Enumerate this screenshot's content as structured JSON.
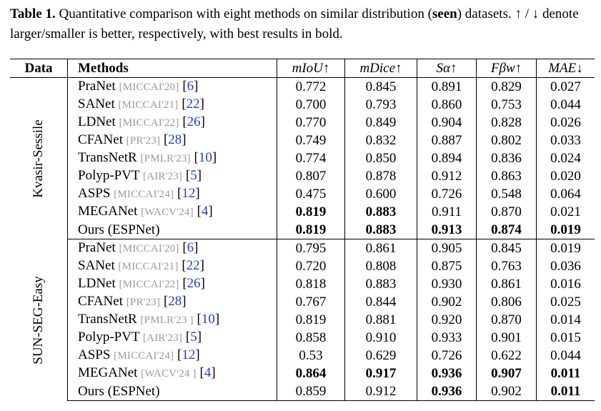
{
  "caption": {
    "label": "Table 1.",
    "text_a": " Quantitative comparison with eight methods on similar distribution (",
    "text_seen": "seen",
    "text_b": ") datasets. ↑ / ↓ denote larger/smaller is better, respectively, with best results in bold."
  },
  "header": {
    "data": "Data",
    "methods": "Methods",
    "miou": "mIoU↑",
    "mdice": "mDice↑",
    "s_alpha": "Sα↑",
    "f_beta": "Fβw↑",
    "mae": "MAE↓"
  },
  "groups": [
    {
      "name": "Kvasir-Sessile",
      "rows": [
        {
          "method": "PraNet",
          "venue": "[MICCAI'20]",
          "cite": "6",
          "v": [
            "0.772",
            "0.845",
            "0.891",
            "0.829",
            "0.027"
          ],
          "bold": [
            false,
            false,
            false,
            false,
            false
          ]
        },
        {
          "method": "SANet",
          "venue": "[MICCAI'21]",
          "cite": "22",
          "v": [
            "0.700",
            "0.793",
            "0.860",
            "0.753",
            "0.044"
          ],
          "bold": [
            false,
            false,
            false,
            false,
            false
          ]
        },
        {
          "method": "LDNet",
          "venue": "[MICCAI'22]",
          "cite": "26",
          "v": [
            "0.770",
            "0.849",
            "0.904",
            "0.828",
            "0.026"
          ],
          "bold": [
            false,
            false,
            false,
            false,
            false
          ]
        },
        {
          "method": "CFANet",
          "venue": "[PR'23]",
          "cite": "28",
          "v": [
            "0.749",
            "0.832",
            "0.887",
            "0.802",
            "0.033"
          ],
          "bold": [
            false,
            false,
            false,
            false,
            false
          ]
        },
        {
          "method": "TransNetR",
          "venue": "[PMLR'23]",
          "cite": "10",
          "v": [
            "0.774",
            "0.850",
            "0.894",
            "0.836",
            "0.024"
          ],
          "bold": [
            false,
            false,
            false,
            false,
            false
          ]
        },
        {
          "method": "Polyp-PVT",
          "venue": "[AIR'23]",
          "cite": "5",
          "v": [
            "0.807",
            "0.878",
            "0.912",
            "0.863",
            "0.020"
          ],
          "bold": [
            false,
            false,
            false,
            false,
            false
          ]
        },
        {
          "method": "ASPS",
          "venue": "[MICCAI'24]",
          "cite": "12",
          "v": [
            "0.475",
            "0.600",
            "0.726",
            "0.548",
            "0.064"
          ],
          "bold": [
            false,
            false,
            false,
            false,
            false
          ]
        },
        {
          "method": "MEGANet",
          "venue": "[WACV'24]",
          "cite": "4",
          "v": [
            "0.819",
            "0.883",
            "0.911",
            "0.870",
            "0.021"
          ],
          "bold": [
            true,
            true,
            false,
            false,
            false
          ]
        },
        {
          "method": "Ours (ESPNet)",
          "venue": "",
          "cite": "",
          "v": [
            "0.819",
            "0.883",
            "0.913",
            "0.874",
            "0.019"
          ],
          "bold": [
            true,
            true,
            true,
            true,
            true
          ]
        }
      ]
    },
    {
      "name": "SUN-SEG-Easy",
      "rows": [
        {
          "method": "PraNet",
          "venue": "[MICCAI'20]",
          "cite": "6",
          "v": [
            "0.795",
            "0.861",
            "0.905",
            "0.845",
            "0.019"
          ],
          "bold": [
            false,
            false,
            false,
            false,
            false
          ]
        },
        {
          "method": "SANet",
          "venue": "[MICCAI'21]",
          "cite": "22",
          "v": [
            "0.720",
            "0.808",
            "0.875",
            "0.763",
            "0.036"
          ],
          "bold": [
            false,
            false,
            false,
            false,
            false
          ]
        },
        {
          "method": "LDNet",
          "venue": "[MICCAI'22]",
          "cite": "26",
          "v": [
            "0.818",
            "0.883",
            "0.930",
            "0.861",
            "0.016"
          ],
          "bold": [
            false,
            false,
            false,
            false,
            false
          ]
        },
        {
          "method": "CFANet",
          "venue": "[PR'23]",
          "cite": "28",
          "v": [
            "0.767",
            "0.844",
            "0.902",
            "0.806",
            "0.025"
          ],
          "bold": [
            false,
            false,
            false,
            false,
            false
          ]
        },
        {
          "method": "TransNetR",
          "venue": "[PMLR'23 ]",
          "cite": "10",
          "v": [
            "0.819",
            "0.881",
            "0.920",
            "0.870",
            "0.014"
          ],
          "bold": [
            false,
            false,
            false,
            false,
            false
          ]
        },
        {
          "method": "Polyp-PVT",
          "venue": "[AIR'23]",
          "cite": "5",
          "v": [
            "0.858",
            "0.910",
            "0.933",
            "0.901",
            "0.015"
          ],
          "bold": [
            false,
            false,
            false,
            false,
            false
          ]
        },
        {
          "method": "ASPS",
          "venue": "[MICCAI'24]",
          "cite": "12",
          "v": [
            "0.53",
            "0.629",
            "0.726",
            "0.622",
            "0.044"
          ],
          "bold": [
            false,
            false,
            false,
            false,
            false
          ]
        },
        {
          "method": "MEGANet",
          "venue": "[WACV'24 ]",
          "cite": "4",
          "v": [
            "0.864",
            "0.917",
            "0.936",
            "0.907",
            "0.011"
          ],
          "bold": [
            true,
            true,
            true,
            true,
            true
          ]
        },
        {
          "method": "Ours (ESPNet)",
          "venue": "",
          "cite": "",
          "v": [
            "0.859",
            "0.912",
            "0.936",
            "0.902",
            "0.011"
          ],
          "bold": [
            false,
            false,
            true,
            false,
            true
          ]
        }
      ]
    }
  ]
}
